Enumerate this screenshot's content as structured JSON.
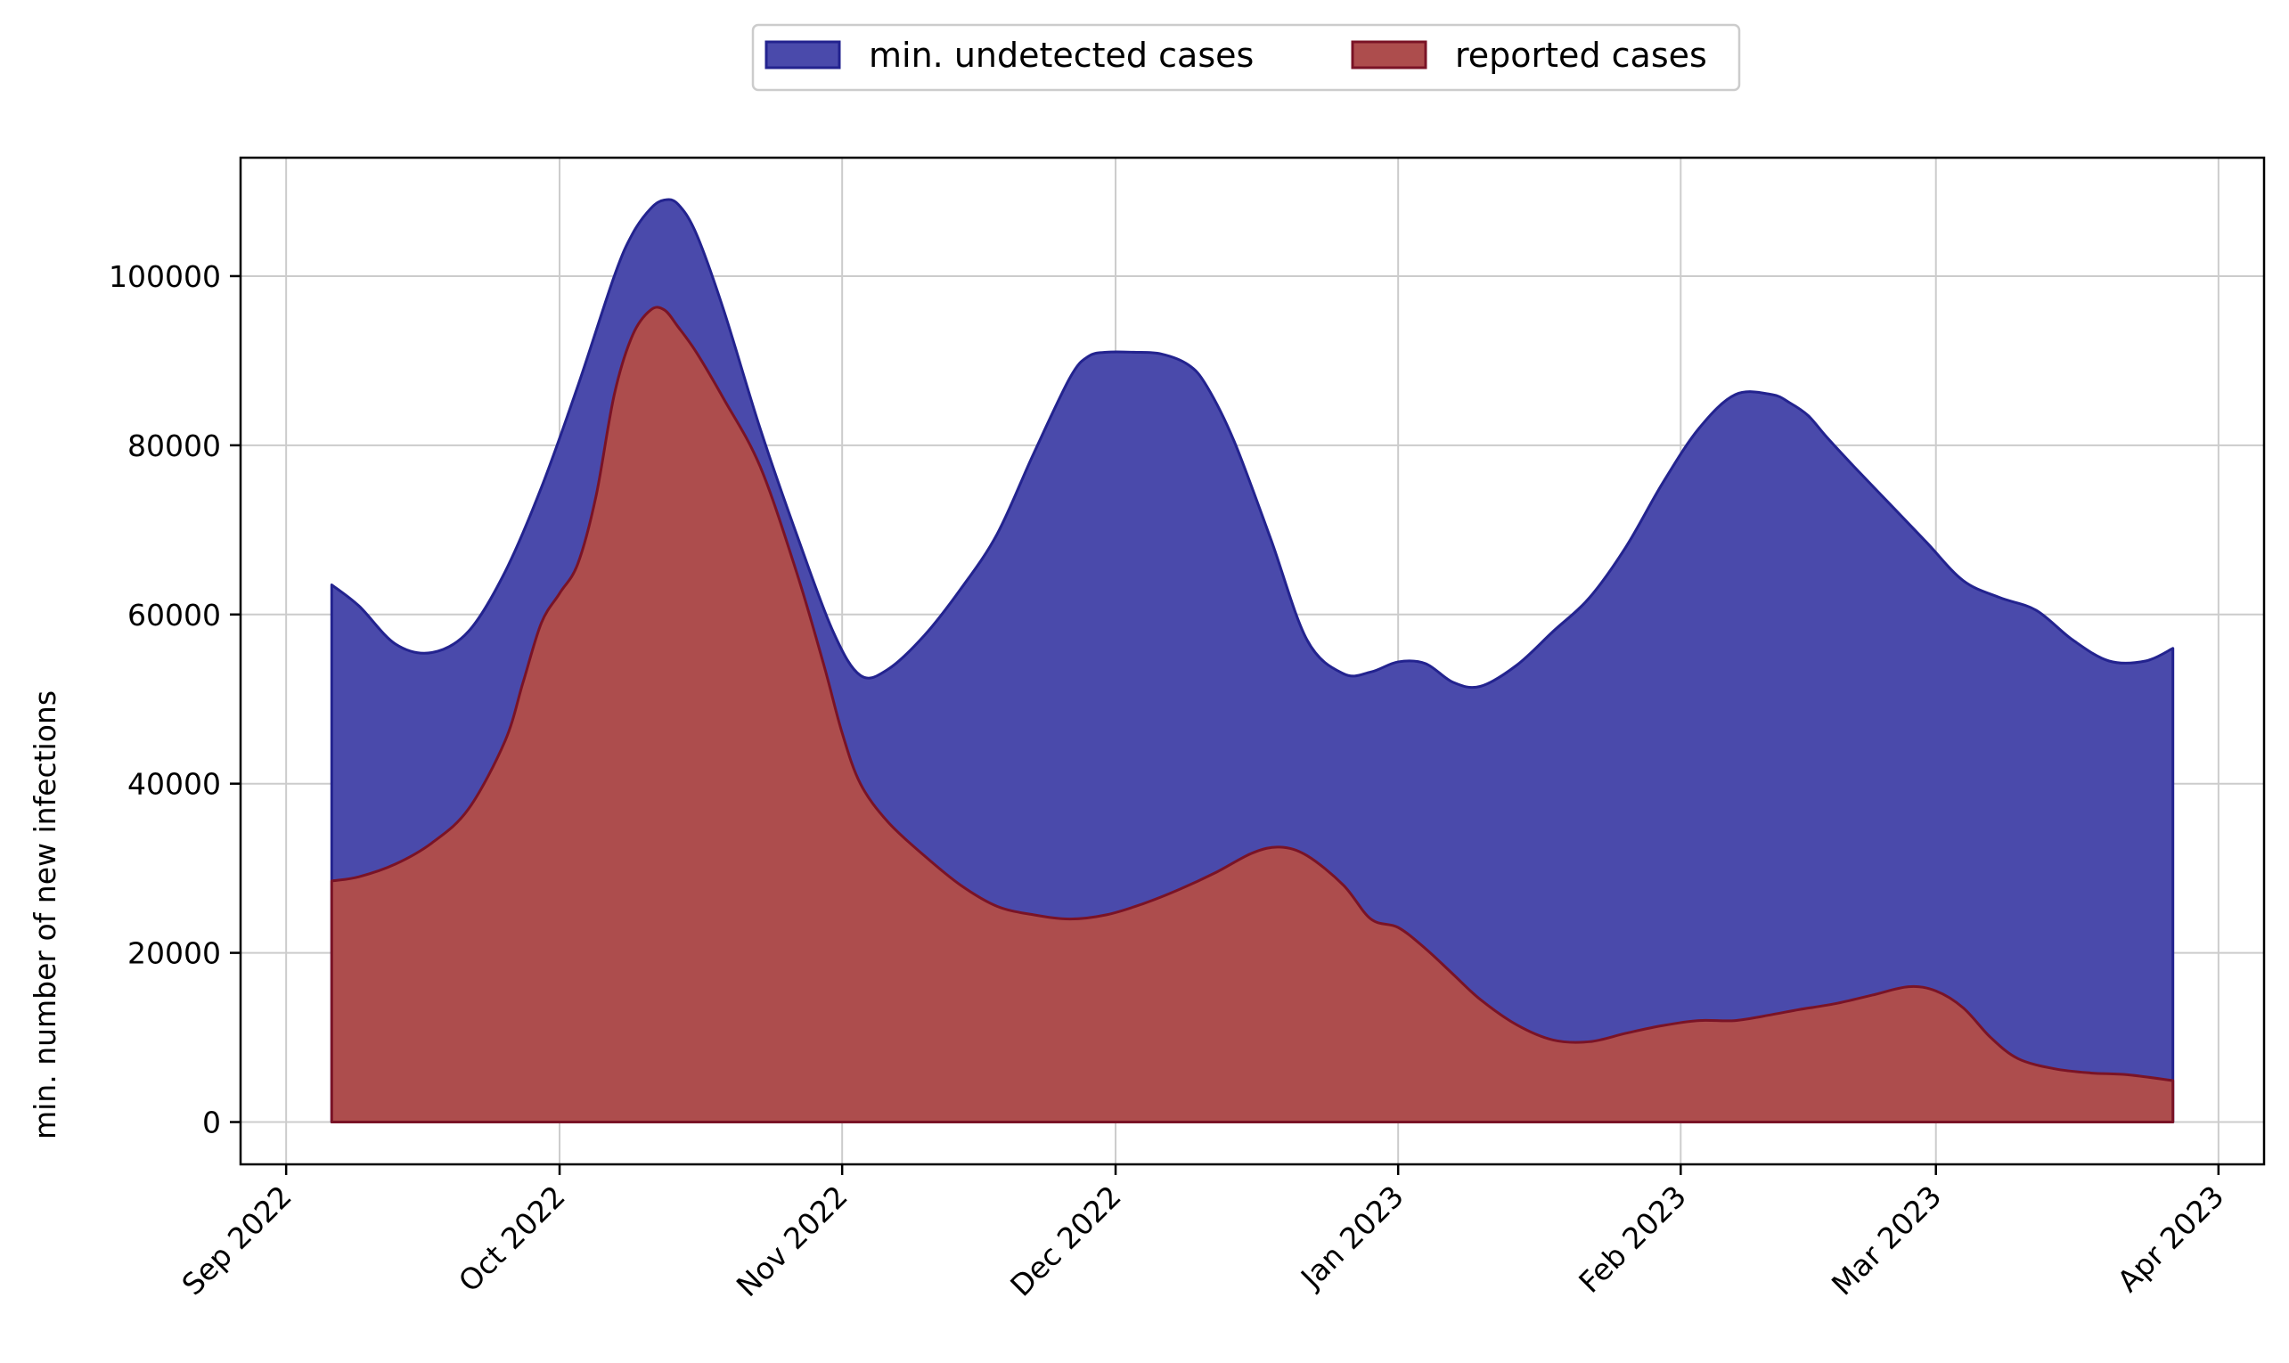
{
  "chart_data": {
    "type": "area",
    "title": "",
    "xlabel": "",
    "ylabel": "min. number of new infections",
    "ylim": [
      -5000,
      114000
    ],
    "yticks": [
      0,
      20000,
      40000,
      60000,
      80000,
      100000
    ],
    "xlim_days": [
      -5,
      217
    ],
    "xticks": [
      {
        "label": "Sep 2022",
        "day": 0
      },
      {
        "label": "Oct 2022",
        "day": 30
      },
      {
        "label": "Nov 2022",
        "day": 61
      },
      {
        "label": "Dec 2022",
        "day": 91
      },
      {
        "label": "Jan 2023",
        "day": 122
      },
      {
        "label": "Feb 2023",
        "day": 153
      },
      {
        "label": "Mar 2023",
        "day": 181
      },
      {
        "label": "Apr 2023",
        "day": 212
      }
    ],
    "grid": true,
    "legend_position": "top-center",
    "legend": [
      "min. undetected cases",
      "reported cases"
    ],
    "colors": {
      "undetected_fill": "#4a4aab",
      "undetected_line": "#23238f",
      "reported_fill": "#ad4d4d",
      "reported_line": "#7a1326",
      "grid": "#cccccc"
    },
    "series": [
      {
        "name": "min. undetected cases",
        "x_days": [
          5,
          8,
          12,
          16,
          20,
          24,
          28,
          32,
          36,
          38,
          40,
          41.5,
          43,
          45,
          48,
          52,
          56,
          60,
          63,
          66,
          70,
          74,
          78,
          82,
          86,
          88,
          90,
          93,
          96,
          99,
          101,
          104,
          108,
          112,
          116,
          119,
          122,
          125,
          128,
          131,
          135,
          139,
          143,
          147,
          151,
          155,
          159,
          163,
          165,
          167,
          169,
          172,
          176,
          180,
          184,
          188,
          192,
          196,
          200,
          204,
          207
        ],
        "values": [
          63500,
          61000,
          56500,
          55500,
          58000,
          65000,
          75000,
          87000,
          100000,
          105000,
          108000,
          109000,
          108500,
          105000,
          96000,
          82000,
          69500,
          58000,
          52800,
          53500,
          57500,
          63000,
          69500,
          79000,
          88000,
          90500,
          91000,
          91000,
          90800,
          89500,
          87000,
          80500,
          69000,
          57000,
          53000,
          53200,
          54400,
          54200,
          52000,
          51500,
          54000,
          58000,
          62000,
          68000,
          75500,
          82000,
          86000,
          86000,
          85000,
          83500,
          81000,
          77500,
          73000,
          68500,
          64000,
          62000,
          60500,
          57000,
          54500,
          54500,
          56000
        ]
      },
      {
        "name": "reported cases",
        "x_days": [
          5,
          8,
          12,
          16,
          20,
          24,
          26,
          28,
          30,
          32,
          34,
          36,
          38,
          40,
          41.5,
          43,
          45,
          48,
          52,
          56,
          59,
          61,
          63,
          66,
          70,
          74,
          78,
          82,
          86,
          90,
          94,
          98,
          102,
          106,
          109,
          112,
          116,
          119,
          122,
          125,
          128,
          131,
          135,
          139,
          143,
          147,
          151,
          155,
          159,
          163,
          166,
          170,
          174,
          178,
          181,
          184,
          187,
          190,
          194,
          198,
          202,
          207
        ],
        "values": [
          28500,
          29000,
          30500,
          33000,
          37000,
          45000,
          52000,
          59000,
          62500,
          66000,
          74000,
          86000,
          93000,
          96000,
          96000,
          94000,
          91000,
          85500,
          77500,
          65000,
          54000,
          46000,
          40000,
          35500,
          31500,
          28000,
          25500,
          24500,
          24000,
          24500,
          25800,
          27500,
          29500,
          31800,
          32500,
          31500,
          28000,
          24000,
          23000,
          20500,
          17500,
          14500,
          11500,
          9700,
          9500,
          10500,
          11400,
          12000,
          12000,
          12700,
          13300,
          14000,
          15000,
          16000,
          15500,
          13500,
          10000,
          7500,
          6300,
          5800,
          5600,
          4900
        ]
      }
    ]
  }
}
